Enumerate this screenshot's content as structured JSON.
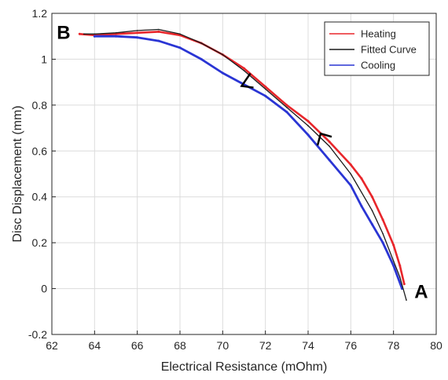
{
  "chart_data": {
    "type": "line",
    "xlabel": "Electrical Resistance (mOhm)",
    "ylabel": "Disc Displacement (mm)",
    "xlim": [
      62,
      80
    ],
    "ylim": [
      -0.2,
      1.2
    ],
    "x_ticks": [
      "62",
      "64",
      "66",
      "68",
      "70",
      "72",
      "74",
      "76",
      "78",
      "80"
    ],
    "y_ticks": [
      "-0.2",
      "0",
      "0.2",
      "0.4",
      "0.6",
      "0.8",
      "1",
      "1.2"
    ],
    "grid": true,
    "legend_position": "top-right",
    "series": [
      {
        "name": "Heating",
        "color": "#e8262b",
        "x": [
          63.3,
          64,
          65,
          66,
          67,
          68,
          69,
          70,
          71,
          72,
          73,
          74,
          75,
          76,
          76.5,
          77,
          77.5,
          78,
          78.3,
          78.5
        ],
        "y": [
          1.11,
          1.105,
          1.11,
          1.115,
          1.12,
          1.105,
          1.07,
          1.02,
          0.96,
          0.88,
          0.8,
          0.73,
          0.64,
          0.54,
          0.48,
          0.4,
          0.3,
          0.19,
          0.1,
          0.02
        ]
      },
      {
        "name": "Fitted Curve",
        "color": "#1a1a1a",
        "x": [
          63.5,
          64,
          65,
          66,
          67,
          68,
          69,
          70,
          71,
          72,
          73,
          74,
          75,
          76,
          77,
          77.5,
          78,
          78.3,
          78.6
        ],
        "y": [
          1.11,
          1.11,
          1.115,
          1.125,
          1.13,
          1.11,
          1.07,
          1.02,
          0.95,
          0.87,
          0.79,
          0.71,
          0.62,
          0.5,
          0.34,
          0.24,
          0.12,
          0.05,
          -0.05
        ]
      },
      {
        "name": "Cooling",
        "color": "#2a35d4",
        "x": [
          64,
          65,
          66,
          67,
          68,
          69,
          70,
          71,
          72,
          73,
          74,
          75,
          76,
          76.5,
          77,
          77.5,
          78,
          78.4
        ],
        "y": [
          1.1,
          1.1,
          1.095,
          1.08,
          1.05,
          1.0,
          0.94,
          0.89,
          0.84,
          0.77,
          0.67,
          0.56,
          0.45,
          0.36,
          0.28,
          0.2,
          0.1,
          0.0
        ]
      }
    ],
    "annotations": [
      {
        "text": "B",
        "x": 62.55,
        "y": 1.12
      },
      {
        "text": "A",
        "x": 79.3,
        "y": -0.01
      }
    ],
    "direction_arrows": [
      {
        "series": "Cooling",
        "x": 71,
        "y": 0.89,
        "pointing": "left"
      },
      {
        "series": "Heating",
        "x": 74.7,
        "y": 0.655,
        "pointing": "up"
      }
    ]
  }
}
